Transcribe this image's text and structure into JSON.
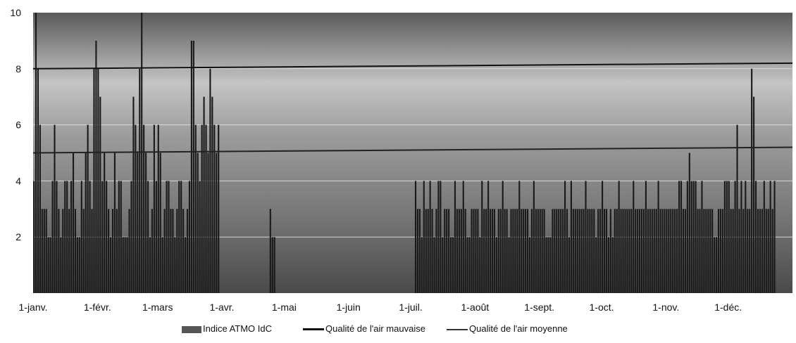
{
  "chart_data": {
    "type": "bar",
    "yaxis_ticks": [
      "2",
      "4",
      "6",
      "8",
      "10"
    ],
    "ylim": [
      0,
      10
    ],
    "month_labels": [
      "1-janv.",
      "1-févr.",
      "1-mars",
      "1-avr.",
      "1-mai",
      "1-juin",
      "1-juil.",
      "1-août",
      "1-sept.",
      "1-oct.",
      "1-nov.",
      "1-déc."
    ],
    "series": [
      {
        "name": "Indice ATMO IdC",
        "segments": [
          {
            "start": "2016-01-01",
            "values": [
              4,
              10,
              8,
              6,
              3,
              3,
              3,
              2,
              2,
              4,
              6,
              4,
              3,
              2,
              3,
              4,
              4,
              3,
              4,
              5,
              3,
              2,
              2,
              4,
              3,
              5,
              6,
              4,
              3,
              8,
              9,
              8,
              7,
              4,
              5,
              4,
              3,
              2,
              3,
              5,
              3,
              4,
              4,
              2,
              2,
              2,
              3,
              4,
              7,
              6,
              5,
              8,
              10,
              6,
              5,
              4,
              2,
              3,
              6,
              4,
              6,
              5,
              2,
              3,
              4,
              4,
              3,
              3,
              2,
              3,
              4,
              4,
              3,
              2,
              3,
              4,
              9,
              9,
              6,
              5,
              4,
              6,
              7,
              6,
              5,
              8,
              7,
              6,
              5,
              6
            ]
          },
          {
            "start": "2016-04-24",
            "values": [
              3,
              2,
              2
            ]
          },
          {
            "start": "2016-07-03",
            "values": [
              4,
              3,
              3,
              2,
              4,
              3,
              3,
              4,
              3,
              2,
              3,
              4,
              4,
              2,
              3,
              3,
              3,
              2,
              2,
              4,
              3,
              3,
              3,
              4,
              3,
              2,
              2,
              3,
              3,
              3,
              3,
              2,
              4,
              3,
              3,
              4,
              3,
              3,
              3,
              2,
              3,
              3,
              4,
              3,
              3,
              2,
              3,
              3,
              3,
              3,
              4,
              3,
              3,
              3,
              3,
              2,
              3,
              4,
              3,
              3,
              3,
              3,
              3,
              2,
              2,
              2,
              3,
              3,
              3,
              3,
              3,
              3,
              4,
              3,
              2,
              4,
              3,
              3,
              3,
              3,
              3,
              3,
              4,
              3,
              3,
              3,
              3,
              2,
              3,
              3,
              4,
              3,
              3,
              2,
              3,
              2,
              3,
              3,
              4,
              3,
              3,
              3,
              3,
              3,
              3,
              4,
              3,
              3,
              3,
              3,
              3,
              4,
              3,
              3,
              3,
              3,
              3,
              4,
              3,
              3,
              3,
              3,
              3,
              3,
              3,
              3,
              3,
              4,
              4,
              3,
              3,
              4,
              5,
              4,
              4,
              4,
              3,
              3,
              4,
              3,
              3,
              3,
              3,
              3,
              2,
              2,
              3,
              3,
              3,
              4,
              4,
              4,
              3,
              3,
              4,
              6,
              3,
              4,
              3,
              4,
              3,
              3,
              8,
              7,
              4,
              3,
              3,
              3,
              4,
              3,
              3,
              4,
              3,
              4
            ]
          }
        ]
      },
      {
        "name": "Qualité de l'air mauvaise",
        "values": [
          8,
          8.2
        ]
      },
      {
        "name": "Qualité de l'air moyenne",
        "values": [
          5,
          5.2
        ]
      }
    ]
  },
  "legend": {
    "bars": "Indice ATMO IdC",
    "bad": "Qualité de l'air mauvaise",
    "medium": "Qualité de l'air moyenne"
  },
  "colors": {
    "bars": "#1a1a1a",
    "bad_line": "#111111",
    "medium_line": "#222222"
  }
}
